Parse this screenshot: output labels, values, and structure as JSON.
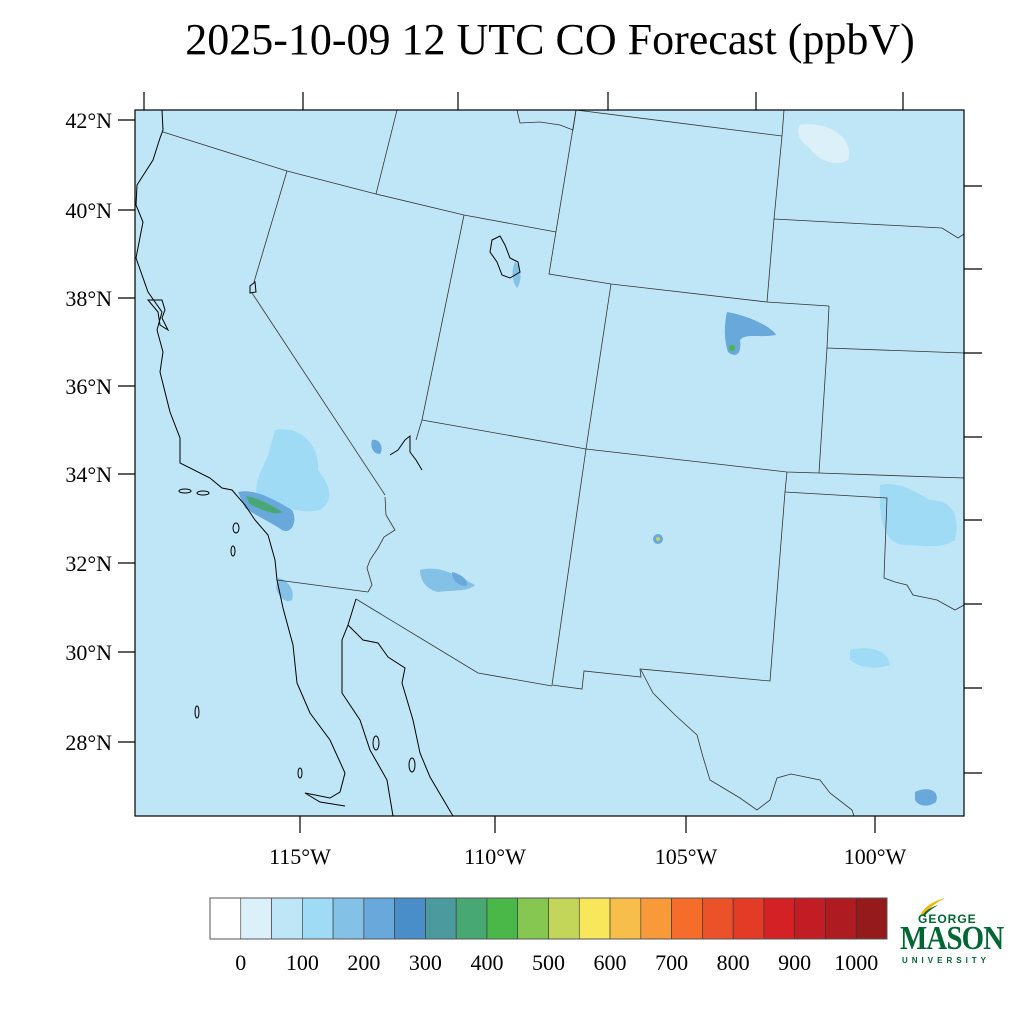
{
  "title": "2025-10-09 12 UTC CO Forecast (ppbV)",
  "chart_data": {
    "type": "filled contour map",
    "title": "2025-10-09 12 UTC CO Forecast (ppbV)",
    "variable": "CO",
    "units": "ppbV",
    "lat_ticks": [
      "42°N",
      "40°N",
      "38°N",
      "36°N",
      "34°N",
      "32°N",
      "30°N",
      "28°N"
    ],
    "lon_ticks": [
      "115°W",
      "110°W",
      "105°W",
      "100°W"
    ],
    "background_level_color": "#bfe6f7",
    "colorbar": {
      "labels": [
        "0",
        "100",
        "200",
        "300",
        "400",
        "500",
        "600",
        "700",
        "800",
        "900",
        "1000"
      ],
      "levels": [
        0,
        50,
        100,
        150,
        200,
        250,
        300,
        350,
        400,
        450,
        500,
        550,
        600,
        650,
        700,
        750,
        800,
        850,
        900,
        950,
        1000
      ],
      "colors": [
        "#ffffff",
        "#dcf0fa",
        "#bfe6f7",
        "#a0dbf5",
        "#84c1e6",
        "#68a8db",
        "#4a8ec9",
        "#4a9a9e",
        "#48a874",
        "#4ab848",
        "#85c751",
        "#c4d65a",
        "#f8e65b",
        "#f8be4b",
        "#f89a3a",
        "#f56c2b",
        "#ec5229",
        "#e23b26",
        "#d42126",
        "#c21c24",
        "#ae1b20",
        "#951a1c"
      ]
    }
  },
  "logo": {
    "line1": "GEORGE",
    "line2": "MASON",
    "line3": "UNIVERSITY",
    "green": "#006633",
    "gold": "#f2b705"
  }
}
